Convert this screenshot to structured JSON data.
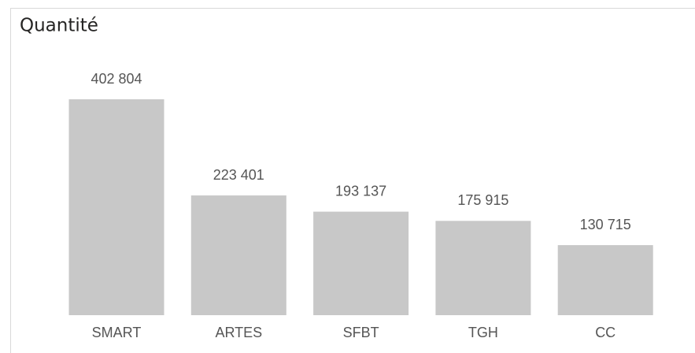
{
  "chart_data": {
    "type": "bar",
    "title": "Quantité",
    "categories": [
      "SMART",
      "ARTES",
      "SFBT",
      "TGH",
      "CC"
    ],
    "values": [
      402804,
      223401,
      193137,
      175915,
      130715
    ],
    "value_labels": [
      "402 804",
      "223 401",
      "193 137",
      "175 915",
      "130 715"
    ],
    "color": "#c8c8c8"
  }
}
